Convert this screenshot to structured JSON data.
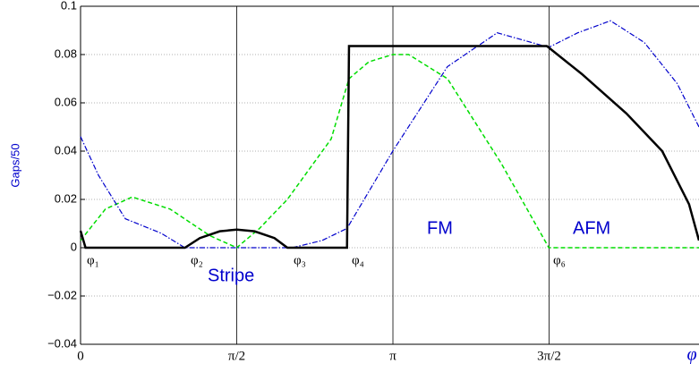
{
  "chart_data": {
    "type": "line",
    "ylabel": "Gaps/50",
    "xlabel": "φ",
    "xlim": [
      0,
      6.22
    ],
    "ylim": [
      -0.04,
      0.1
    ],
    "xticks": [
      0,
      {
        "value": 1.5708,
        "label": "π/2"
      },
      {
        "value": 3.1416,
        "label": "π"
      },
      {
        "value": 4.7124,
        "label": "3π/2"
      }
    ],
    "yticks": [
      {
        "value": -0.04,
        "label": "−0.04"
      },
      {
        "value": -0.02,
        "label": "−0.02"
      },
      0,
      0.02,
      0.04,
      0.06,
      0.08,
      0.1
    ],
    "grid": true,
    "annotations": [
      "φ₁",
      "φ₂",
      "φ₃",
      "φ₄",
      "φ₆",
      "Stripe",
      "FM",
      "AFM"
    ],
    "series": [
      {
        "name": "black",
        "color": "#000000",
        "x": [
          0,
          0.05,
          1.05,
          1.2,
          1.4,
          1.571,
          1.75,
          1.95,
          2.08,
          2.68,
          2.7,
          4.69,
          5.04,
          5.49,
          5.85,
          6.12,
          6.22
        ],
        "values": [
          0.007,
          0,
          0,
          0.004,
          0.0068,
          0.0075,
          0.0068,
          0.004,
          0,
          0,
          0.0835,
          0.0835,
          0.072,
          0.0556,
          0.04,
          0.018,
          0.003
        ]
      },
      {
        "name": "green",
        "color": "#00dd00",
        "x": [
          0,
          0.25,
          0.52,
          0.9,
          1.3,
          1.571,
          1.8,
          2.08,
          2.52,
          2.7,
          2.9,
          3.14,
          3.3,
          3.69,
          4.23,
          4.71,
          6.22
        ],
        "values": [
          0.003,
          0.016,
          0.021,
          0.016,
          0.005,
          0,
          0.008,
          0.02,
          0.045,
          0.07,
          0.077,
          0.08,
          0.08,
          0.07,
          0.035,
          0,
          0
        ]
      },
      {
        "name": "blue",
        "color": "#0000cc",
        "x": [
          0,
          0.18,
          0.45,
          0.81,
          1.05,
          2.13,
          2.43,
          2.68,
          3.14,
          3.69,
          4.19,
          4.71,
          5.0,
          5.33,
          5.67,
          6.0,
          6.22
        ],
        "values": [
          0.046,
          0.03,
          0.012,
          0.006,
          0,
          0,
          0.003,
          0.008,
          0.04,
          0.075,
          0.089,
          0.083,
          0.089,
          0.094,
          0.085,
          0.068,
          0.05
        ]
      }
    ]
  }
}
